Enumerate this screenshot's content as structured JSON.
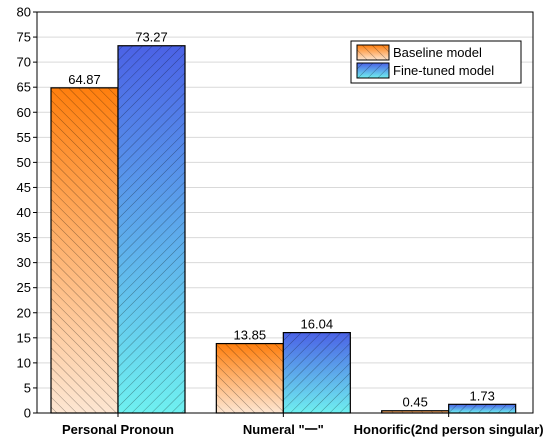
{
  "chart_data": {
    "type": "bar",
    "categories": [
      "Personal Pronoun",
      "Numeral \"一\"",
      "Honorific(2nd person singular)"
    ],
    "series": [
      {
        "name": "Baseline model",
        "values": [
          64.87,
          13.85,
          0.45
        ],
        "color_top": "#ff7f0e",
        "color_bottom": "#fde6d2"
      },
      {
        "name": "Fine-tuned model",
        "values": [
          73.27,
          16.04,
          1.73
        ],
        "color_top": "#4b62e6",
        "color_bottom": "#6ff0f0"
      }
    ],
    "data_labels": [
      [
        "64.87",
        "13.85",
        "0.45"
      ],
      [
        "73.27",
        "16.04",
        "1.73"
      ]
    ],
    "ylim": [
      0,
      80
    ],
    "yticks": [
      "0",
      "5",
      "10",
      "15",
      "20",
      "25",
      "30",
      "35",
      "40",
      "45",
      "50",
      "55",
      "60",
      "65",
      "70",
      "75",
      "80"
    ],
    "grid": true,
    "legend_position": "top-right"
  }
}
